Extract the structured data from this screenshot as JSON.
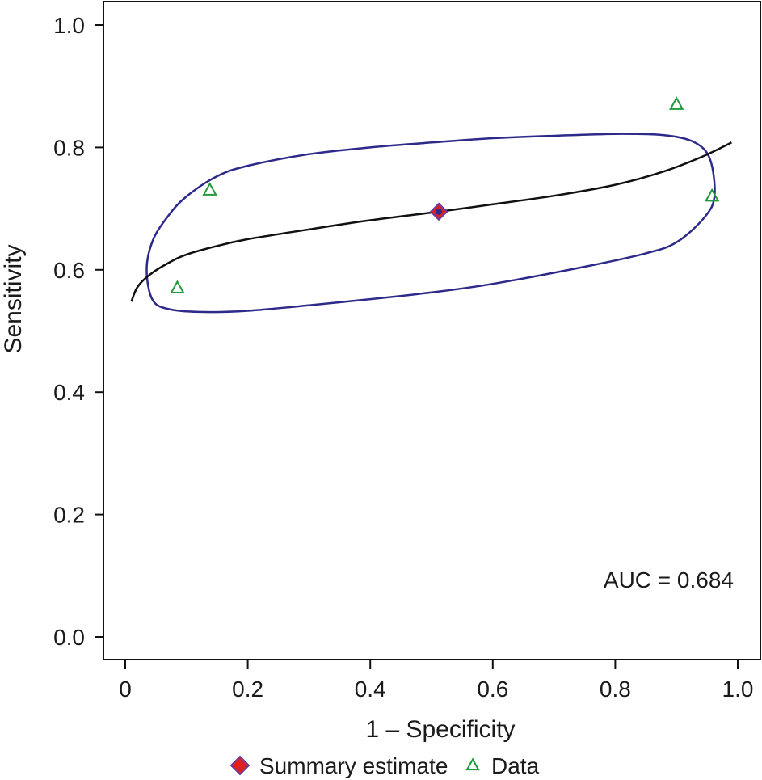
{
  "chart_data": {
    "type": "scatter",
    "title": "",
    "xlabel": "1 – Specificity",
    "ylabel": "Sensitivity",
    "xlim": [
      0,
      1
    ],
    "ylim": [
      0,
      1
    ],
    "x_ticks": [
      0,
      0.2,
      0.4,
      0.6,
      0.8,
      1.0
    ],
    "x_tick_labels": [
      "0",
      "0.2",
      "0.4",
      "0.6",
      "0.8",
      "1.0"
    ],
    "y_ticks": [
      0,
      0.2,
      0.4,
      0.6,
      0.8,
      1.0
    ],
    "y_tick_labels": [
      "0.0",
      "0.2",
      "0.4",
      "0.6",
      "0.8",
      "1.0"
    ],
    "grid": false,
    "legend_position": "bottom",
    "annotation": "AUC = 0.684",
    "legend": [
      {
        "label": "Summary estimate",
        "marker": "diamond",
        "color": "#e02020"
      },
      {
        "label": "Data",
        "marker": "triangle",
        "color": "#1f9a3c"
      }
    ],
    "series": [
      {
        "name": "Data",
        "marker": "triangle",
        "color": "#1f9a3c",
        "points": [
          {
            "x": 0.085,
            "y": 0.57
          },
          {
            "x": 0.138,
            "y": 0.73
          },
          {
            "x": 0.9,
            "y": 0.87
          },
          {
            "x": 0.958,
            "y": 0.72
          }
        ]
      },
      {
        "name": "Summary estimate",
        "marker": "diamond",
        "color": "#e02020",
        "points": [
          {
            "x": 0.512,
            "y": 0.695
          }
        ]
      }
    ],
    "sroc_curve": {
      "color": "#111111",
      "points": [
        [
          0.01,
          0.548
        ],
        [
          0.02,
          0.572
        ],
        [
          0.04,
          0.592
        ],
        [
          0.07,
          0.611
        ],
        [
          0.1,
          0.625
        ],
        [
          0.15,
          0.639
        ],
        [
          0.2,
          0.65
        ],
        [
          0.3,
          0.666
        ],
        [
          0.4,
          0.681
        ],
        [
          0.512,
          0.695
        ],
        [
          0.6,
          0.707
        ],
        [
          0.7,
          0.721
        ],
        [
          0.8,
          0.739
        ],
        [
          0.88,
          0.761
        ],
        [
          0.94,
          0.784
        ],
        [
          0.99,
          0.808
        ]
      ]
    },
    "confidence_region": {
      "color": "#2d2a8a",
      "points": [
        [
          0.15,
          0.753
        ],
        [
          0.2,
          0.77
        ],
        [
          0.3,
          0.789
        ],
        [
          0.4,
          0.8
        ],
        [
          0.5,
          0.808
        ],
        [
          0.6,
          0.815
        ],
        [
          0.7,
          0.819
        ],
        [
          0.8,
          0.822
        ],
        [
          0.88,
          0.82
        ],
        [
          0.93,
          0.808
        ],
        [
          0.955,
          0.78
        ],
        [
          0.962,
          0.72
        ],
        [
          0.945,
          0.685
        ],
        [
          0.9,
          0.645
        ],
        [
          0.85,
          0.627
        ],
        [
          0.75,
          0.605
        ],
        [
          0.6,
          0.577
        ],
        [
          0.5,
          0.563
        ],
        [
          0.4,
          0.552
        ],
        [
          0.3,
          0.542
        ],
        [
          0.2,
          0.533
        ],
        [
          0.13,
          0.531
        ],
        [
          0.075,
          0.535
        ],
        [
          0.045,
          0.55
        ],
        [
          0.035,
          0.6
        ],
        [
          0.045,
          0.648
        ],
        [
          0.07,
          0.688
        ],
        [
          0.1,
          0.72
        ]
      ]
    }
  }
}
